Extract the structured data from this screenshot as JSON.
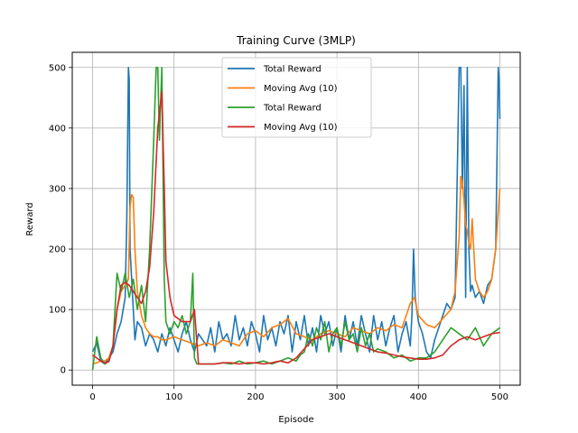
{
  "chart_data": {
    "type": "line",
    "title": "Training Curve (3MLP)",
    "xlabel": "Episode",
    "ylabel": "Reward",
    "xlim": [
      -25,
      525
    ],
    "ylim": [
      -25,
      525
    ],
    "xticks": [
      0,
      100,
      200,
      300,
      400,
      500
    ],
    "yticks": [
      0,
      100,
      200,
      300,
      400,
      500
    ],
    "grid": true,
    "legend_position": "top-center",
    "series": [
      {
        "name": "Total Reward",
        "color": "#1f77b4",
        "x": [
          0,
          5,
          10,
          15,
          20,
          25,
          30,
          35,
          40,
          42,
          44,
          45,
          46,
          48,
          50,
          52,
          55,
          60,
          65,
          70,
          75,
          80,
          85,
          90,
          95,
          100,
          105,
          110,
          115,
          120,
          125,
          130,
          135,
          140,
          145,
          150,
          155,
          160,
          165,
          170,
          175,
          180,
          185,
          190,
          195,
          200,
          205,
          210,
          215,
          220,
          225,
          230,
          235,
          240,
          245,
          250,
          255,
          260,
          265,
          270,
          275,
          280,
          285,
          290,
          295,
          300,
          305,
          310,
          315,
          320,
          325,
          330,
          335,
          340,
          345,
          350,
          355,
          360,
          365,
          370,
          375,
          380,
          385,
          390,
          392,
          394,
          396,
          400,
          405,
          410,
          415,
          420,
          425,
          430,
          435,
          440,
          445,
          450,
          452,
          454,
          456,
          458,
          460,
          462,
          464,
          466,
          470,
          475,
          480,
          485,
          490,
          495,
          498,
          499,
          500
        ],
        "y": [
          30,
          45,
          15,
          10,
          20,
          30,
          60,
          80,
          120,
          250,
          500,
          480,
          200,
          150,
          100,
          50,
          80,
          70,
          40,
          60,
          50,
          30,
          60,
          40,
          70,
          50,
          30,
          60,
          80,
          50,
          30,
          60,
          50,
          40,
          70,
          30,
          80,
          50,
          60,
          40,
          90,
          50,
          70,
          40,
          80,
          60,
          30,
          90,
          50,
          70,
          40,
          80,
          60,
          90,
          30,
          80,
          50,
          90,
          40,
          70,
          30,
          90,
          60,
          80,
          40,
          70,
          30,
          90,
          50,
          80,
          40,
          90,
          60,
          30,
          90,
          50,
          80,
          40,
          70,
          90,
          30,
          60,
          80,
          40,
          90,
          200,
          120,
          80,
          60,
          30,
          20,
          50,
          70,
          90,
          110,
          100,
          120,
          500,
          500,
          300,
          470,
          120,
          500,
          200,
          130,
          140,
          120,
          130,
          110,
          140,
          150,
          200,
          500,
          480,
          415
        ]
      },
      {
        "name": "Moving Avg (10)",
        "color": "#ff7f0e",
        "x": [
          0,
          5,
          10,
          15,
          20,
          25,
          30,
          35,
          40,
          44,
          46,
          48,
          50,
          52,
          55,
          60,
          65,
          70,
          75,
          80,
          85,
          90,
          100,
          110,
          120,
          130,
          140,
          150,
          160,
          170,
          180,
          190,
          200,
          210,
          220,
          230,
          240,
          250,
          260,
          270,
          280,
          290,
          300,
          310,
          320,
          330,
          340,
          350,
          360,
          370,
          380,
          390,
          395,
          400,
          410,
          420,
          430,
          440,
          445,
          450,
          452,
          454,
          456,
          458,
          460,
          462,
          464,
          466,
          470,
          475,
          480,
          485,
          490,
          495,
          500
        ],
        "y": [
          10,
          12,
          15,
          15,
          20,
          40,
          100,
          130,
          140,
          150,
          270,
          290,
          285,
          200,
          130,
          90,
          70,
          60,
          55,
          55,
          50,
          50,
          55,
          50,
          45,
          40,
          45,
          40,
          50,
          45,
          40,
          60,
          65,
          55,
          70,
          75,
          85,
          60,
          55,
          50,
          60,
          65,
          60,
          55,
          70,
          65,
          60,
          70,
          65,
          75,
          70,
          110,
          120,
          90,
          75,
          70,
          85,
          100,
          130,
          220,
          320,
          310,
          280,
          240,
          230,
          210,
          200,
          250,
          150,
          130,
          120,
          130,
          150,
          200,
          300
        ]
      },
      {
        "name": "Total Reward",
        "color": "#2ca02c",
        "x": [
          0,
          5,
          10,
          15,
          20,
          25,
          30,
          35,
          40,
          45,
          50,
          55,
          60,
          65,
          70,
          75,
          78,
          80,
          82,
          85,
          88,
          90,
          95,
          100,
          105,
          110,
          115,
          120,
          123,
          125,
          128,
          130,
          140,
          150,
          160,
          170,
          180,
          190,
          200,
          210,
          220,
          230,
          240,
          250,
          255,
          260,
          265,
          270,
          275,
          280,
          285,
          290,
          295,
          300,
          305,
          310,
          315,
          320,
          325,
          330,
          335,
          340,
          345,
          350,
          360,
          370,
          380,
          390,
          400,
          410,
          420,
          430,
          440,
          450,
          460,
          470,
          480,
          490,
          500
        ],
        "y": [
          0,
          55,
          20,
          10,
          15,
          40,
          160,
          130,
          160,
          120,
          150,
          100,
          140,
          80,
          200,
          380,
          500,
          500,
          380,
          500,
          150,
          80,
          60,
          80,
          70,
          90,
          60,
          80,
          160,
          20,
          10,
          10,
          10,
          10,
          12,
          10,
          15,
          10,
          12,
          15,
          10,
          15,
          20,
          15,
          25,
          30,
          60,
          40,
          70,
          50,
          80,
          30,
          60,
          70,
          40,
          80,
          50,
          60,
          30,
          70,
          40,
          60,
          30,
          35,
          30,
          20,
          25,
          15,
          20,
          20,
          30,
          50,
          70,
          60,
          50,
          70,
          40,
          60,
          70
        ]
      },
      {
        "name": "Moving Avg (10)",
        "color": "#d62728",
        "x": [
          0,
          5,
          10,
          15,
          20,
          25,
          30,
          35,
          40,
          45,
          50,
          55,
          60,
          65,
          70,
          75,
          80,
          85,
          88,
          90,
          95,
          100,
          105,
          110,
          120,
          125,
          130,
          140,
          150,
          160,
          170,
          180,
          190,
          200,
          210,
          220,
          230,
          240,
          250,
          260,
          270,
          280,
          290,
          300,
          310,
          320,
          330,
          340,
          350,
          360,
          370,
          380,
          390,
          400,
          410,
          420,
          430,
          440,
          450,
          460,
          470,
          480,
          490,
          500
        ],
        "y": [
          25,
          20,
          15,
          12,
          14,
          40,
          100,
          140,
          145,
          140,
          130,
          120,
          110,
          130,
          170,
          260,
          400,
          460,
          300,
          180,
          120,
          90,
          85,
          80,
          80,
          100,
          10,
          10,
          10,
          12,
          12,
          10,
          12,
          12,
          10,
          12,
          15,
          12,
          20,
          35,
          50,
          55,
          60,
          55,
          50,
          45,
          40,
          35,
          30,
          28,
          25,
          22,
          20,
          18,
          18,
          20,
          25,
          40,
          50,
          55,
          50,
          55,
          60,
          62
        ]
      }
    ]
  }
}
